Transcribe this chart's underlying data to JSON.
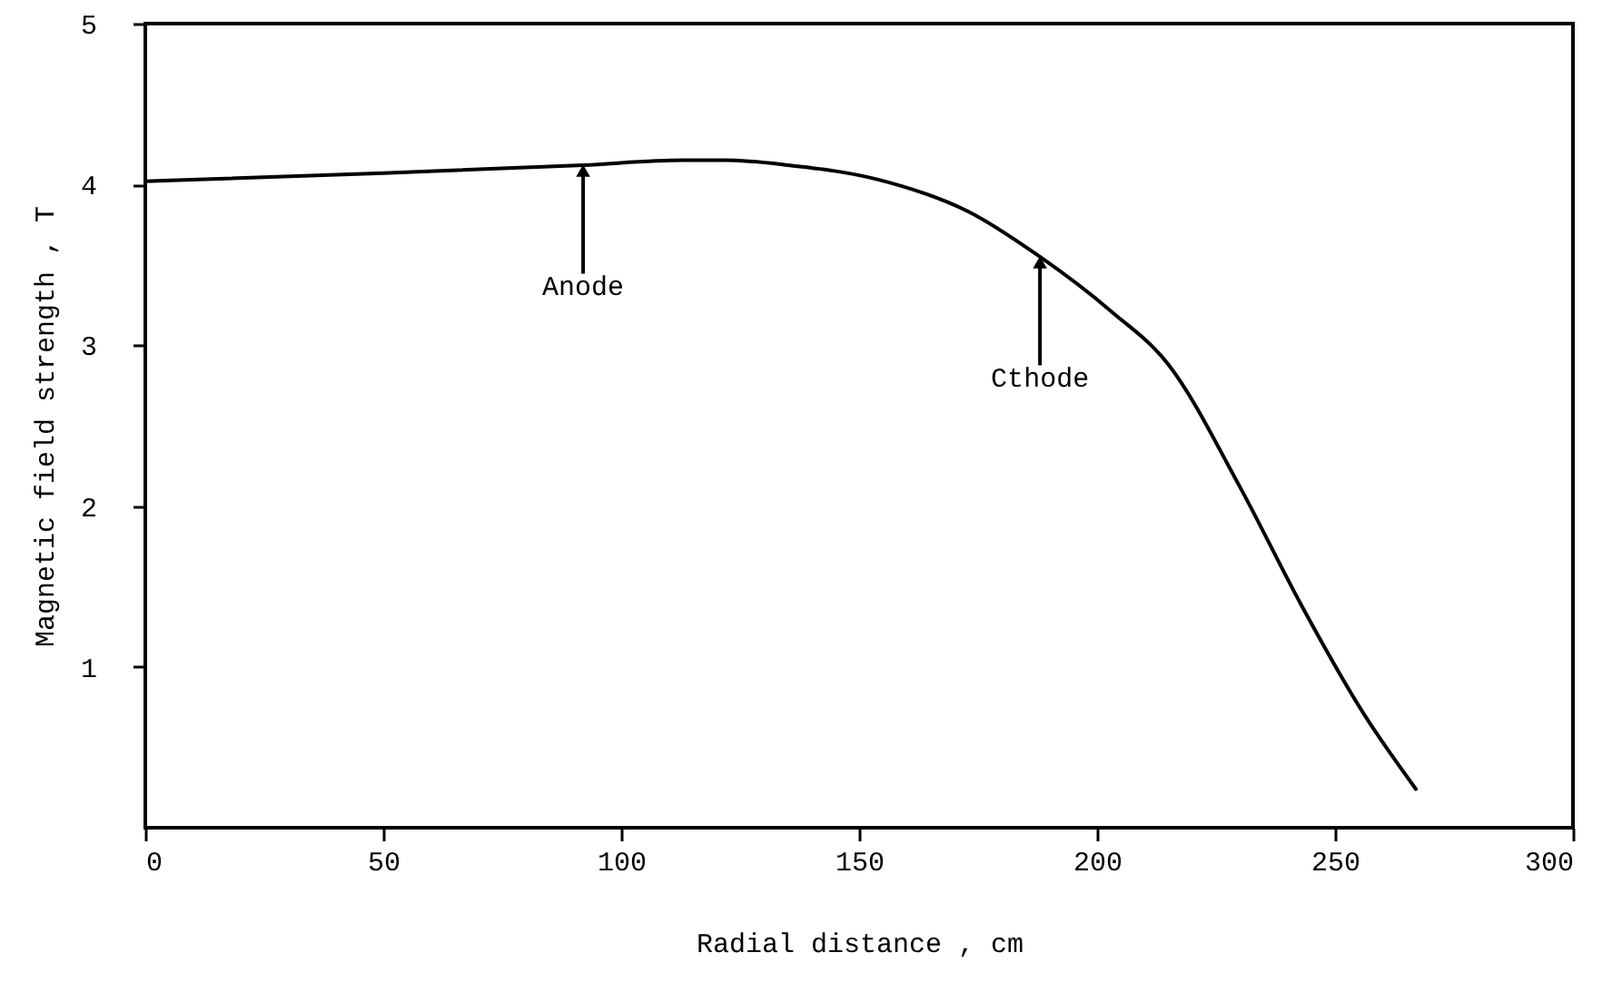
{
  "chart_data": {
    "type": "line",
    "xlabel": "Radial distance , cm",
    "ylabel": "Magnetic field strength , T",
    "x": [
      0,
      50,
      92,
      113,
      122,
      135,
      154,
      173,
      188,
      203,
      215,
      230,
      243,
      256,
      267
    ],
    "series": [
      {
        "color": "#000000",
        "values": [
          4.02,
          4.07,
          4.12,
          4.15,
          4.15,
          4.12,
          4.03,
          3.83,
          3.55,
          3.21,
          2.88,
          2.12,
          1.38,
          0.71,
          0.24
        ]
      }
    ],
    "xlim": [
      0,
      300
    ],
    "xticks": [
      0,
      50,
      100,
      150,
      200,
      250,
      300
    ],
    "ylim": [
      0,
      5
    ],
    "yticks": [
      1,
      2,
      3,
      4,
      5
    ],
    "marker": "none",
    "line_style": "solid",
    "annotations": [
      {
        "text": "Anode",
        "x": 92,
        "y": 4.12
      },
      {
        "text": "Cthode",
        "x": 188,
        "y": 3.55
      }
    ]
  }
}
